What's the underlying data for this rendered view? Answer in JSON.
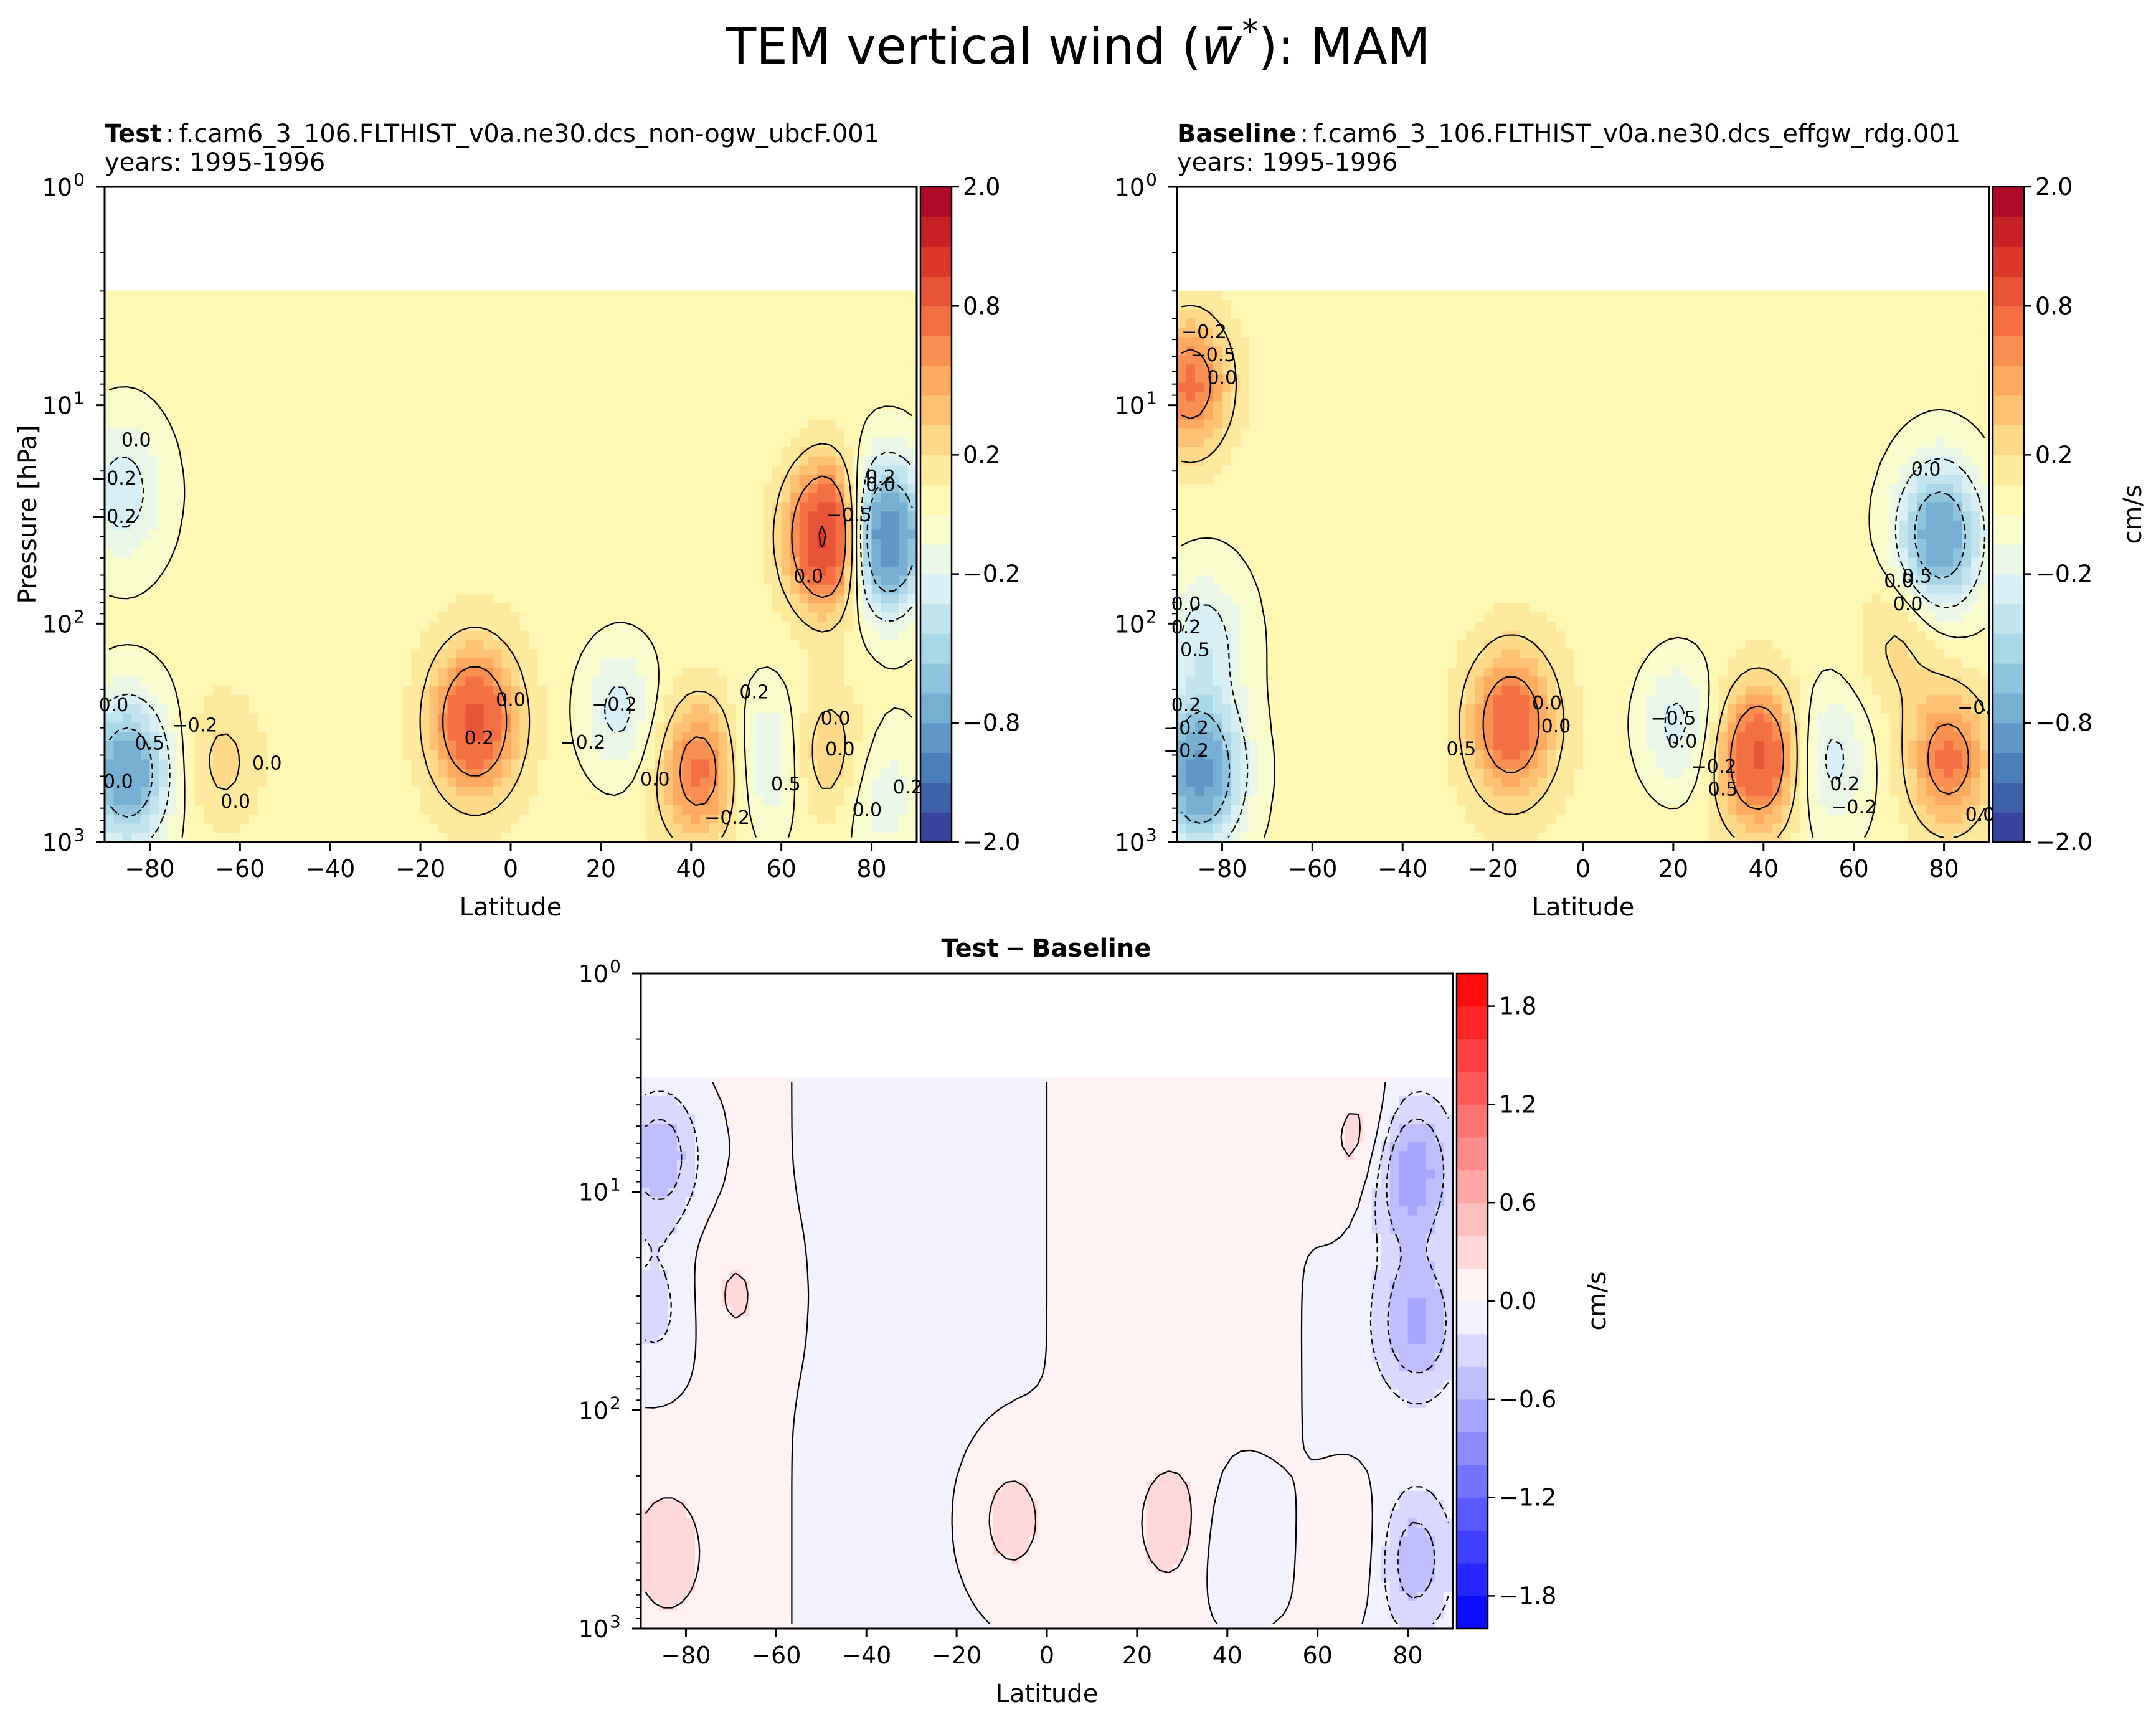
{
  "figure": {
    "suptitle": "TEM vertical wind (w̄*): MAM",
    "suptitle_main": "TEM vertical wind (",
    "suptitle_symbol": "w̄",
    "suptitle_star": "*",
    "suptitle_tail": "): MAM"
  },
  "chart_data": [
    {
      "type": "heatmap",
      "panel": "test",
      "title_bold": "Test",
      "title_sep": ":",
      "title_case": "f.cam6_3_106.FLTHIST_v0a.ne30.dcs_non-ogw_ubcF.001",
      "title_years": "years: 1995-1996",
      "xlabel": "Latitude",
      "ylabel": "Pressure [hPa]",
      "xlim": [
        -90,
        90
      ],
      "xticks": [
        -80,
        -60,
        -40,
        -20,
        0,
        20,
        40,
        60,
        80
      ],
      "ylim_hPa": [
        1000,
        1
      ],
      "yscale": "log",
      "yticks": [
        {
          "base": "10",
          "exp": "0"
        },
        {
          "base": "10",
          "exp": "1"
        },
        {
          "base": "10",
          "exp": "2"
        },
        {
          "base": "10",
          "exp": "3"
        }
      ],
      "data_top_hPa": 3,
      "colormap": "RdYlBu_r",
      "colorbar_ticks": [
        "2.0",
        "0.8",
        "0.2",
        "−0.2",
        "−0.8",
        "−2.0"
      ],
      "colorbar_levels": [
        -2.0,
        -1.5,
        -1.2,
        -1.0,
        -0.8,
        -0.6,
        -0.5,
        -0.4,
        -0.3,
        -0.2,
        -0.1,
        0.0,
        0.1,
        0.2,
        0.3,
        0.4,
        0.5,
        0.6,
        0.8,
        1.0,
        1.2,
        1.5,
        2.0
      ],
      "colorbar_label": "",
      "features": [
        {
          "lat": -85,
          "p": 480,
          "value": -0.8
        },
        {
          "lat": -86,
          "p": 25,
          "value": -0.3
        },
        {
          "lat": -64,
          "p": 430,
          "value": 0.2
        },
        {
          "lat": -8,
          "p": 280,
          "value": 0.8
        },
        {
          "lat": 24,
          "p": 250,
          "value": -0.3
        },
        {
          "lat": 42,
          "p": 470,
          "value": 0.6
        },
        {
          "lat": 57,
          "p": 420,
          "value": -0.3
        },
        {
          "lat": 71,
          "p": 40,
          "value": 1.2
        },
        {
          "lat": 70,
          "p": 400,
          "value": 0.3
        },
        {
          "lat": 82,
          "p": 40,
          "value": -1.2
        },
        {
          "lat": 82,
          "p": 600,
          "value": -0.2
        }
      ],
      "contour_labels": [
        "0.0",
        "0.0",
        "−0.2",
        "0.0",
        "−0.2",
        "0.0",
        "0.5",
        "0.0",
        "0.0",
        "0.2",
        "0.0",
        "0.5",
        "−0.2",
        "0.0",
        "0.2",
        "−0.2",
        "−0.2",
        "0.2",
        "0.0",
        "0.0",
        "−0.5",
        "0.2",
        "0.0",
        "−0.2",
        "0.0"
      ]
    },
    {
      "type": "heatmap",
      "panel": "baseline",
      "title_bold": "Baseline",
      "title_sep": ":",
      "title_case": "f.cam6_3_106.FLTHIST_v0a.ne30.dcs_effgw_rdg.001",
      "title_years": "years: 1995-1996",
      "xlabel": "Latitude",
      "ylabel": "",
      "xlim": [
        -90,
        90
      ],
      "xticks": [
        -80,
        -60,
        -40,
        -20,
        0,
        20,
        40,
        60,
        80
      ],
      "ylim_hPa": [
        1000,
        1
      ],
      "yscale": "log",
      "yticks": [
        {
          "base": "10",
          "exp": "0"
        },
        {
          "base": "10",
          "exp": "1"
        },
        {
          "base": "10",
          "exp": "2"
        },
        {
          "base": "10",
          "exp": "3"
        }
      ],
      "data_top_hPa": 3,
      "colormap": "RdYlBu_r",
      "colorbar_ticks": [
        "2.0",
        "0.8",
        "0.2",
        "−0.2",
        "−0.8",
        "−2.0"
      ],
      "colorbar_levels": [
        -2.0,
        -1.5,
        -1.2,
        -1.0,
        -0.8,
        -0.6,
        -0.5,
        -0.4,
        -0.3,
        -0.2,
        -0.1,
        0.0,
        0.1,
        0.2,
        0.3,
        0.4,
        0.5,
        0.6,
        0.8,
        1.0,
        1.2,
        1.5,
        2.0
      ],
      "colorbar_label": "cm/s",
      "features": [
        {
          "lat": -85,
          "p": 480,
          "value": -0.9
        },
        {
          "lat": -87,
          "p": 8,
          "value": 0.6
        },
        {
          "lat": -84,
          "p": 120,
          "value": -0.3
        },
        {
          "lat": -16,
          "p": 290,
          "value": 0.7
        },
        {
          "lat": 21,
          "p": 290,
          "value": -0.3
        },
        {
          "lat": 39,
          "p": 410,
          "value": 0.8
        },
        {
          "lat": 54,
          "p": 420,
          "value": -0.3
        },
        {
          "lat": 79,
          "p": 40,
          "value": -0.8
        },
        {
          "lat": 81,
          "p": 420,
          "value": 0.6
        },
        {
          "lat": 70,
          "p": 120,
          "value": 0.2
        }
      ],
      "contour_labels": [
        "0.2",
        "−0.2",
        "0.0",
        "0.0",
        "−0.5",
        "−0.2",
        "0.2",
        "0.5",
        "0.0",
        "0.0",
        "−0.2",
        "−0.5",
        "0.2",
        "0.0",
        "0.0",
        "0.5",
        "−0.2",
        "0.0",
        "−0.5",
        "0.0",
        "−0.2",
        "0.0",
        "0.5",
        "0.5"
      ]
    },
    {
      "type": "heatmap",
      "panel": "difference",
      "title_bold": "Test",
      "title_minus": "−",
      "title_bold2": "Baseline",
      "xlabel": "Latitude",
      "ylabel": "",
      "xlim": [
        -90,
        90
      ],
      "xticks": [
        -80,
        -60,
        -40,
        -20,
        0,
        20,
        40,
        60,
        80
      ],
      "ylim_hPa": [
        1000,
        1
      ],
      "yscale": "log",
      "yticks": [
        {
          "base": "10",
          "exp": "0"
        },
        {
          "base": "10",
          "exp": "1"
        },
        {
          "base": "10",
          "exp": "2"
        },
        {
          "base": "10",
          "exp": "3"
        }
      ],
      "data_top_hPa": 3,
      "colormap": "bwr",
      "colorbar_ticks": [
        "1.8",
        "1.2",
        "0.6",
        "0.0",
        "−0.6",
        "−1.2",
        "−1.8"
      ],
      "colorbar_range": [
        -2.0,
        2.0
      ],
      "colorbar_nlevels": 20,
      "colorbar_label": "cm/s",
      "features": [
        {
          "lat": -86,
          "p": 7,
          "value": -0.6
        },
        {
          "lat": -87,
          "p": 35,
          "value": -0.3
        },
        {
          "lat": -69,
          "p": 30,
          "value": 0.2
        },
        {
          "lat": -84,
          "p": 450,
          "value": 0.3
        },
        {
          "lat": -8,
          "p": 320,
          "value": 0.3
        },
        {
          "lat": 28,
          "p": 330,
          "value": 0.3
        },
        {
          "lat": 71,
          "p": 6,
          "value": 0.4
        },
        {
          "lat": 80,
          "p": 8,
          "value": -0.8
        },
        {
          "lat": 82,
          "p": 40,
          "value": -0.6
        },
        {
          "lat": 80,
          "p": 480,
          "value": -0.6
        },
        {
          "lat": 72,
          "p": 450,
          "value": 0.3
        },
        {
          "lat": 40,
          "p": 400,
          "value": -0.2
        }
      ]
    }
  ],
  "colors": {
    "rdylbu_r": [
      "#313695",
      "#4575b4",
      "#74add1",
      "#abd9e9",
      "#e0f3f8",
      "#ffffbf",
      "#fee090",
      "#fdae61",
      "#f46d43",
      "#d73027",
      "#a50026"
    ],
    "bwr_neg": "#0000ff",
    "bwr_pos": "#ff0000",
    "contour": "#000000"
  }
}
